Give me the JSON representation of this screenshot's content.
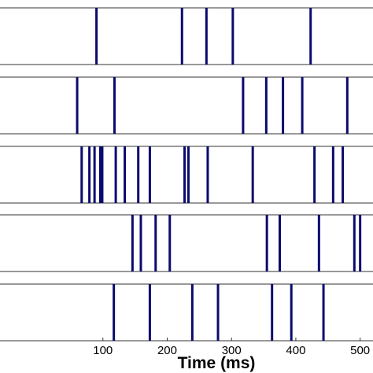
{
  "chart_data": {
    "type": "raster",
    "xlabel": "Time (ms)",
    "xlim": [
      -60,
      520
    ],
    "xticks": [
      100,
      200,
      300,
      400,
      500
    ],
    "colors": {
      "spike": "#0a0a6e",
      "frame": "#333333",
      "background": "#ffffff"
    },
    "trials": [
      {
        "spikes": [
          90,
          223,
          261,
          302,
          423
        ]
      },
      {
        "spikes": [
          60,
          118,
          318,
          354,
          380,
          410,
          480
        ]
      },
      {
        "spikes": [
          67,
          79,
          87,
          96,
          99,
          120,
          134,
          155,
          173,
          227,
          233,
          263,
          333,
          429,
          458,
          473
        ]
      },
      {
        "spikes": [
          146,
          159,
          182,
          204,
          355,
          375,
          436,
          491,
          500
        ]
      },
      {
        "spikes": [
          117,
          173,
          239,
          279,
          363,
          393,
          443
        ]
      }
    ]
  }
}
